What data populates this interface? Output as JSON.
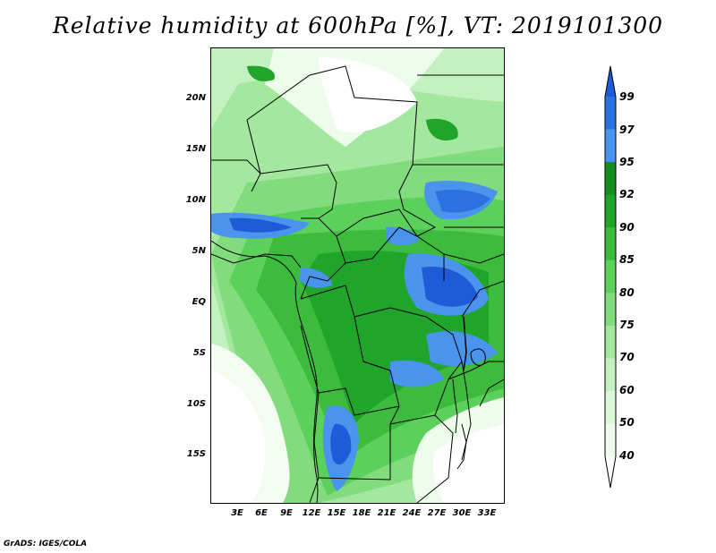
{
  "title": "Relative humidity at 600hPa [%], VT: 2019101300",
  "footer": "GrADS: IGES/COLA",
  "map": {
    "variable": "Relative humidity",
    "level": "600hPa",
    "units": "%",
    "valid_time": "2019101300",
    "lat_labels": [
      "20N",
      "15N",
      "10N",
      "5N",
      "EQ",
      "5S",
      "10S",
      "15S"
    ],
    "lon_labels": [
      "3E",
      "6E",
      "9E",
      "12E",
      "15E",
      "18E",
      "21E",
      "24E",
      "27E",
      "30E",
      "33E"
    ]
  },
  "colorbar": {
    "levels": [
      "99",
      "97",
      "95",
      "92",
      "90",
      "85",
      "80",
      "75",
      "70",
      "60",
      "50",
      "40"
    ],
    "colors": [
      "#1e5bd6",
      "#2b72e0",
      "#4a94ee",
      "#148c1e",
      "#1fa52a",
      "#3cbb3c",
      "#5bd05a",
      "#82dc7e",
      "#a3e89e",
      "#c3f1bf",
      "#dcf7d8",
      "#eefcec",
      "#ffffff"
    ]
  }
}
